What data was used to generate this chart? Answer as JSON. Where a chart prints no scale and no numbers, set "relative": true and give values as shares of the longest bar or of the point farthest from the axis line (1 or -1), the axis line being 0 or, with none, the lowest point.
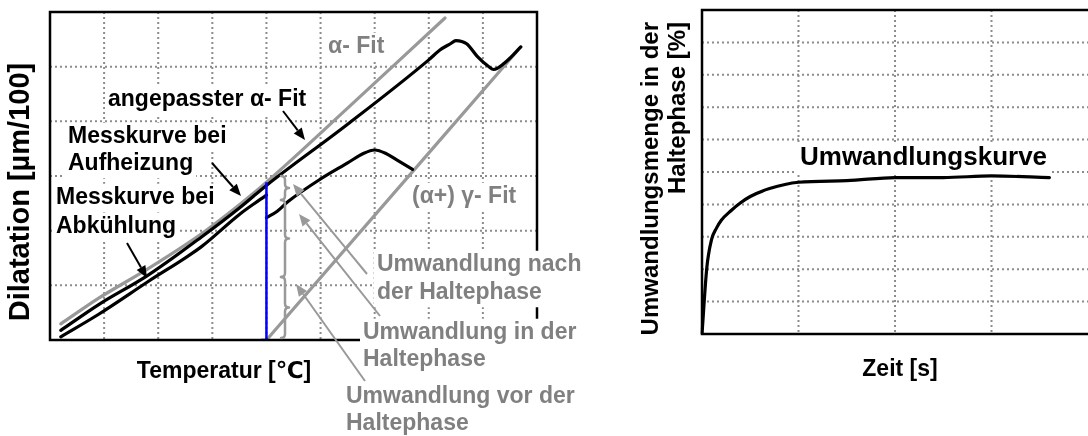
{
  "chart_data": [
    {
      "type": "line",
      "xlabel": "Temperatur [℃]",
      "ylabel": "Dilatation [µm/100]",
      "relative": true,
      "grid": true,
      "categories": [
        null,
        null,
        null,
        null,
        null,
        null,
        null,
        null,
        null,
        null,
        null,
        null,
        null,
        null,
        null,
        null,
        null,
        null,
        null,
        null,
        null,
        null,
        null,
        null,
        null,
        null,
        null,
        null,
        null,
        null,
        null,
        null,
        null,
        null,
        null,
        null,
        null,
        null,
        null,
        null,
        null,
        null,
        null,
        null,
        null,
        null,
        null,
        null,
        null,
        null,
        null,
        null,
        null,
        null,
        null,
        null,
        null,
        null,
        null,
        null,
        null,
        null,
        null,
        null,
        null,
        null,
        null,
        null,
        null,
        null,
        null,
        null,
        null,
        null,
        null,
        null,
        null,
        null,
        null,
        null,
        null,
        null,
        null,
        null,
        null,
        null,
        null,
        null,
        null,
        null,
        null
      ],
      "series": [
        {
          "color": "#999999",
          "values": [
            null,
            null,
            0.05,
            null,
            null,
            null,
            null,
            null,
            null,
            0.13,
            null,
            null,
            null,
            null,
            null,
            null,
            null,
            null,
            0.22,
            null,
            null,
            null,
            null,
            null,
            null,
            null,
            null,
            null,
            0.33,
            null,
            null,
            null,
            null,
            null,
            null,
            0.42,
            null,
            null,
            null,
            null,
            0.49,
            null,
            null,
            null,
            null,
            null,
            null,
            null,
            null,
            null,
            null,
            null,
            null,
            null,
            null,
            0.72,
            null,
            null,
            null,
            null,
            null,
            null,
            null,
            null,
            0.86,
            null,
            null,
            null,
            null,
            null,
            null,
            null,
            null,
            1,
            null,
            null,
            null,
            null,
            null,
            null,
            null,
            null,
            null,
            null,
            null,
            null,
            null,
            null,
            null,
            null,
            null
          ]
        },
        {
          "color": "#999999",
          "values": [
            null,
            null,
            null,
            null,
            null,
            null,
            null,
            null,
            null,
            null,
            null,
            null,
            null,
            null,
            null,
            null,
            null,
            null,
            null,
            null,
            null,
            null,
            null,
            null,
            null,
            null,
            null,
            null,
            null,
            null,
            null,
            null,
            null,
            null,
            null,
            null,
            null,
            null,
            null,
            null,
            0,
            null,
            null,
            null,
            null,
            null,
            null,
            null,
            null,
            null,
            null,
            null,
            null,
            null,
            null,
            null,
            null,
            null,
            null,
            null,
            null,
            null,
            null,
            null,
            null,
            null,
            null,
            null,
            null,
            null,
            null,
            null,
            null,
            null,
            null,
            null,
            null,
            null,
            null,
            null,
            null,
            null,
            null,
            null,
            null,
            null,
            null,
            0.91,
            null,
            null,
            null
          ]
        },
        {
          "color": "#000000",
          "values": [
            null,
            null,
            0.03,
            null,
            null,
            null,
            null,
            null,
            null,
            0.11,
            null,
            null,
            null,
            null,
            null,
            null,
            null,
            null,
            0.2,
            null,
            null,
            null,
            null,
            null,
            null,
            null,
            null,
            null,
            0.32,
            null,
            null,
            null,
            null,
            null,
            null,
            0.41,
            null,
            null,
            null,
            null,
            0.48,
            null,
            null,
            null,
            null,
            null,
            null,
            null,
            null,
            null,
            null,
            null,
            null,
            null,
            null,
            0.67,
            null,
            null,
            null,
            null,
            null,
            null,
            null,
            null,
            null,
            null,
            null,
            null,
            null,
            null,
            0.87,
            null,
            0.9,
            null,
            0.92,
            0.93,
            null,
            0.92,
            null,
            0.88,
            null,
            0.85,
            0.84,
            null,
            0.86,
            null,
            null,
            0.91,
            null,
            null,
            null
          ]
        },
        {
          "color": "#000000",
          "values": [
            null,
            null,
            0.01,
            null,
            null,
            null,
            null,
            null,
            null,
            0.08,
            null,
            null,
            null,
            null,
            null,
            null,
            null,
            null,
            0.18,
            null,
            null,
            null,
            null,
            null,
            null,
            null,
            null,
            null,
            0.29,
            null,
            null,
            null,
            null,
            null,
            null,
            0.39,
            null,
            null,
            null,
            null,
            0.45,
            null,
            null,
            null,
            null,
            null,
            null,
            null,
            null,
            null,
            null,
            null,
            null,
            null,
            null,
            null,
            null,
            null,
            null,
            null,
            null,
            null,
            null,
            null,
            null,
            null,
            null,
            null,
            null,
            null,
            null,
            null,
            null,
            null,
            null,
            null,
            null,
            null,
            null,
            null,
            null,
            null,
            null,
            null,
            null,
            null,
            null,
            null,
            null,
            null,
            null
          ]
        },
        {
          "color": "#000000",
          "values": [
            null,
            null,
            null,
            null,
            null,
            null,
            null,
            null,
            null,
            null,
            null,
            null,
            null,
            null,
            null,
            null,
            null,
            null,
            null,
            null,
            null,
            null,
            null,
            null,
            null,
            null,
            null,
            null,
            null,
            null,
            null,
            null,
            null,
            null,
            null,
            null,
            null,
            null,
            null,
            null,
            0.38,
            null,
            0.4,
            null,
            0.43,
            null,
            null,
            null,
            null,
            null,
            0.5,
            null,
            null,
            null,
            null,
            0.55,
            null,
            null,
            0.58,
            null,
            0.59,
            null,
            0.58,
            null,
            0.56,
            null,
            0.54,
            0.53,
            null,
            null,
            null,
            null,
            null,
            null,
            null,
            null,
            null,
            null,
            null,
            null,
            null,
            null,
            null,
            null,
            null,
            null,
            null,
            null,
            null,
            null,
            null
          ]
        },
        {
          "type": "step",
          "color": "#0000ff",
          "values": [
            null,
            null,
            null,
            null,
            null,
            null,
            null,
            null,
            null,
            null,
            null,
            null,
            null,
            null,
            null,
            null,
            null,
            null,
            null,
            null,
            null,
            null,
            null,
            null,
            null,
            null,
            null,
            null,
            null,
            null,
            null,
            null,
            null,
            null,
            null,
            null,
            null,
            null,
            null,
            0,
            0.49,
            null,
            null,
            null,
            null,
            null,
            null,
            null,
            null,
            null,
            null,
            null,
            null,
            null,
            null,
            null,
            null,
            null,
            null,
            null,
            null,
            null,
            null,
            null,
            null,
            null,
            null,
            null,
            null,
            null,
            null,
            null,
            null,
            null,
            null,
            null,
            null,
            null,
            null,
            null,
            null,
            null,
            null,
            null,
            null,
            null,
            null,
            null,
            null,
            null,
            null
          ]
        }
      ],
      "annotations": [
        "α- Fit",
        "angepasster α- Fit",
        "Messkurve bei Aufheizung",
        "Messkurve bei Abkühlung",
        "(α+) γ- Fit",
        "Umwandlung nach der Haltephase",
        "Umwandlung in der Haltephase",
        "Umwandlung vor der Haltephase"
      ]
    },
    {
      "type": "line",
      "xlabel": "Zeit [s]",
      "ylabel": "Umwandlungsmenge in der Haltephase [%]",
      "relative": true,
      "grid": true,
      "categories": [
        null,
        null,
        null,
        null,
        null,
        null,
        null,
        null,
        null,
        null,
        null,
        null,
        null,
        null,
        null,
        null,
        null,
        null,
        null,
        null,
        null,
        null,
        null,
        null,
        null,
        null,
        null,
        null,
        null,
        null,
        null,
        null,
        null,
        null,
        null,
        null,
        null,
        null,
        null,
        null,
        null,
        null,
        null,
        null,
        null,
        null,
        null,
        null,
        null,
        null,
        null,
        null,
        null,
        null,
        null,
        null,
        null,
        null,
        null,
        null,
        null,
        null,
        null,
        null,
        null,
        null,
        null,
        null,
        null,
        null,
        null,
        null,
        null,
        null,
        null,
        null,
        null,
        null,
        null,
        null,
        null
      ],
      "series": [
        {
          "name": "Umwandlungskurve",
          "color": "#000000",
          "values": [
            0,
            0.42,
            0.6,
            0.67,
            0.72,
            null,
            0.78,
            null,
            0.83,
            null,
            0.87,
            null,
            null,
            null,
            0.92,
            null,
            null,
            null,
            null,
            null,
            0.96,
            null,
            null,
            null,
            null,
            null,
            null,
            null,
            null,
            null,
            0.97,
            null,
            null,
            null,
            null,
            null,
            null,
            null,
            null,
            null,
            0.99,
            null,
            null,
            null,
            null,
            null,
            null,
            null,
            null,
            null,
            0.99,
            null,
            null,
            null,
            null,
            null,
            null,
            null,
            null,
            null,
            1,
            null,
            null,
            null,
            null,
            null,
            null,
            null,
            null,
            null,
            null,
            null,
            0.99,
            null,
            null,
            null,
            null,
            null,
            null,
            null,
            null
          ]
        }
      ]
    }
  ]
}
